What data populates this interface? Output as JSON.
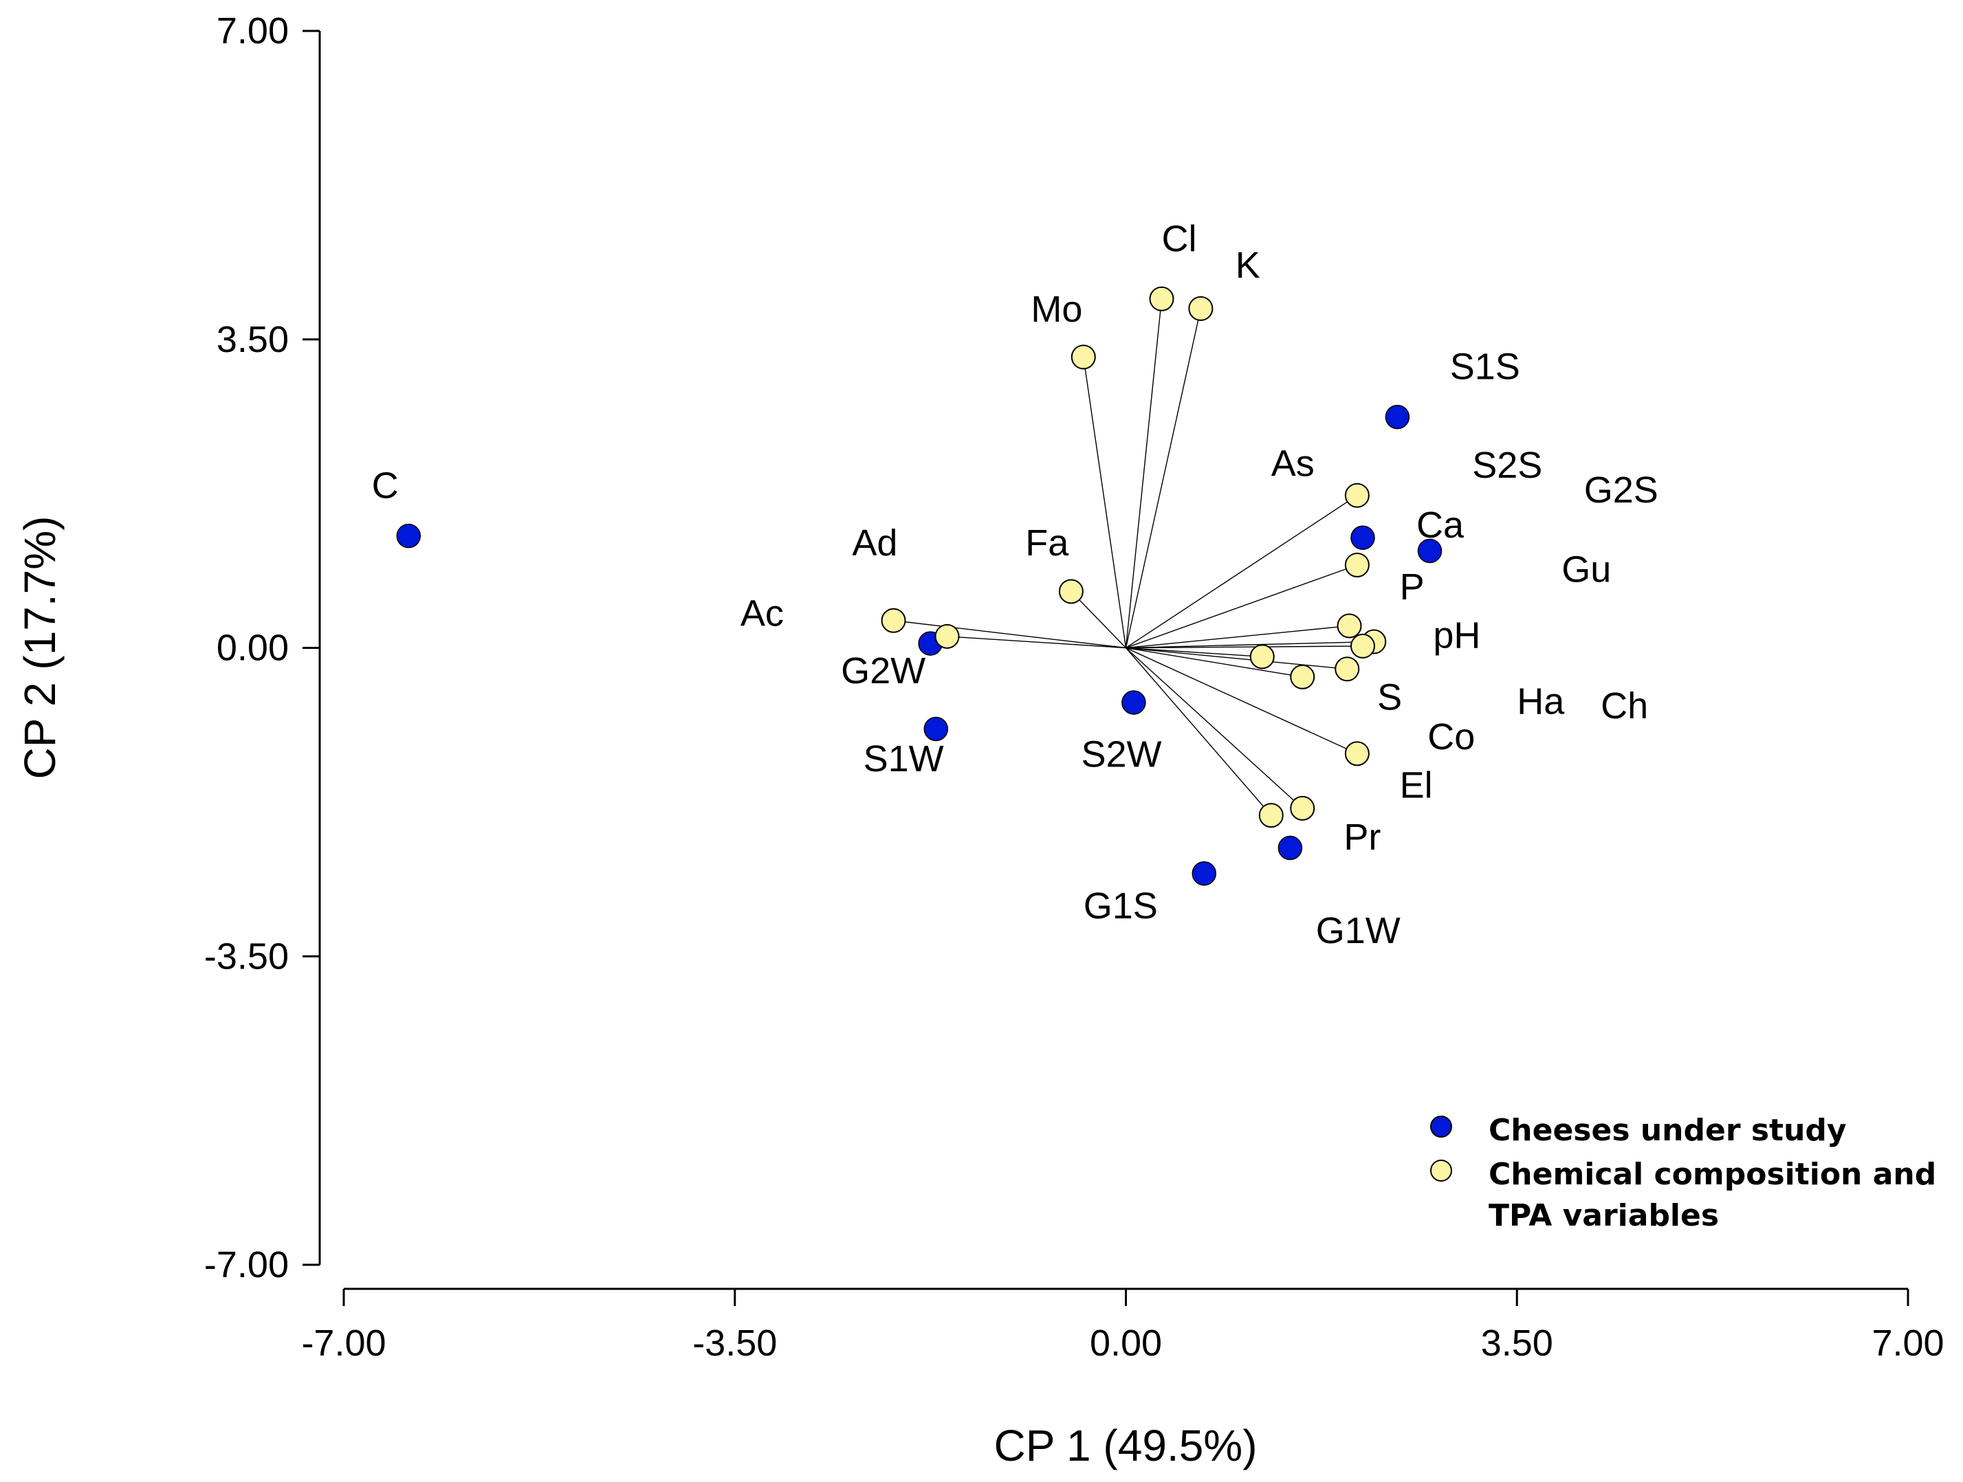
{
  "colors": {
    "cheese": "#0018d8",
    "variable": "#fdf5a6"
  },
  "chart_data": {
    "type": "scatter",
    "xlabel": "CP 1 (49.5%)",
    "ylabel": "CP 2 (17.7%)",
    "xlim": [
      -7,
      7
    ],
    "ylim": [
      -7,
      7
    ],
    "xticks": [
      "-7.00",
      "-3.50",
      "0.00",
      "3.50",
      "7.00"
    ],
    "yticks": [
      "7.00",
      "3.50",
      "0.00",
      "-3.50",
      "-7.00"
    ],
    "grid": false,
    "legend_position": "bottom-right",
    "series": [
      {
        "name": "Cheeses under study",
        "points": [
          {
            "label": "C",
            "x": -6.42,
            "y": 1.27
          },
          {
            "label": "S1S",
            "x": 2.43,
            "y": 2.62
          },
          {
            "label": "G2S",
            "x": 2.72,
            "y": 1.1
          },
          {
            "label": "S2S",
            "x": 2.12,
            "y": 1.25
          },
          {
            "label": "G2W",
            "x": -1.75,
            "y": 0.05
          },
          {
            "label": "S1W",
            "x": -1.7,
            "y": -0.92
          },
          {
            "label": "S2W",
            "x": 0.07,
            "y": -0.62
          },
          {
            "label": "G1W",
            "x": 1.47,
            "y": -2.27
          },
          {
            "label": "G1S",
            "x": 0.7,
            "y": -2.56
          }
        ]
      },
      {
        "name": "Chemical composition and TPA variables",
        "points": [
          {
            "label": "Cl",
            "x": 0.32,
            "y": 3.96
          },
          {
            "label": "K",
            "x": 0.67,
            "y": 3.85
          },
          {
            "label": "Mo",
            "x": -0.38,
            "y": 3.3
          },
          {
            "label": "As",
            "x": 2.07,
            "y": 1.73
          },
          {
            "label": "Ca",
            "x": 2.07,
            "y": 0.94
          },
          {
            "label": "Fa",
            "x": -0.49,
            "y": 0.64
          },
          {
            "label": "Ad",
            "x": -2.08,
            "y": 0.31
          },
          {
            "label": "Ac",
            "x": -1.6,
            "y": 0.13
          },
          {
            "label": "P",
            "x": 2.0,
            "y": 0.25
          },
          {
            "label": "pH",
            "x": 2.22,
            "y": 0.07
          },
          {
            "label": "Gu",
            "x": 2.12,
            "y": 0.02
          },
          {
            "label": "Ha",
            "x": 1.22,
            "y": -0.1
          },
          {
            "label": "Ch",
            "x": 1.98,
            "y": -0.24
          },
          {
            "label": "S",
            "x": 1.58,
            "y": -0.33
          },
          {
            "label": "Co",
            "x": 2.07,
            "y": -1.2
          },
          {
            "label": "El",
            "x": 1.58,
            "y": -1.82
          },
          {
            "label": "Pr",
            "x": 1.3,
            "y": -1.9
          }
        ]
      }
    ],
    "annotations": [
      {
        "text": "C",
        "x": -6.75,
        "y": 1.7
      },
      {
        "text": "S1S",
        "x": 2.9,
        "y": 3.05
      },
      {
        "text": "S2S",
        "x": 3.1,
        "y": 1.93
      },
      {
        "text": "G2S",
        "x": 4.1,
        "y": 1.65
      },
      {
        "text": "Gu",
        "x": 3.9,
        "y": 0.75
      },
      {
        "text": "Ha",
        "x": 3.5,
        "y": -0.75
      },
      {
        "text": "Ch",
        "x": 4.25,
        "y": -0.8
      },
      {
        "text": "As",
        "x": 1.3,
        "y": 1.95
      },
      {
        "text": "Ca",
        "x": 2.6,
        "y": 1.25
      },
      {
        "text": "P",
        "x": 2.45,
        "y": 0.55
      },
      {
        "text": "pH",
        "x": 2.75,
        "y": 0.0
      },
      {
        "text": "S",
        "x": 2.25,
        "y": -0.7
      },
      {
        "text": "Co",
        "x": 2.7,
        "y": -1.15
      },
      {
        "text": "El",
        "x": 2.45,
        "y": -1.7
      },
      {
        "text": "Pr",
        "x": 1.95,
        "y": -2.29
      },
      {
        "text": "G1W",
        "x": 1.7,
        "y": -3.35
      },
      {
        "text": "G1S",
        "x": -0.38,
        "y": -3.07
      },
      {
        "text": "S2W",
        "x": -0.4,
        "y": -1.35
      },
      {
        "text": "S1W",
        "x": -2.35,
        "y": -1.4
      },
      {
        "text": "G2W",
        "x": -2.55,
        "y": -0.4
      },
      {
        "text": "Ac",
        "x": -3.45,
        "y": 0.25
      },
      {
        "text": "Ad",
        "x": -2.45,
        "y": 1.05
      },
      {
        "text": "Fa",
        "x": -0.9,
        "y": 1.05
      },
      {
        "text": "Mo",
        "x": -0.85,
        "y": 3.7
      },
      {
        "text": "Cl",
        "x": 0.32,
        "y": 4.5
      },
      {
        "text": "K",
        "x": 0.98,
        "y": 4.2
      }
    ]
  },
  "legend": {
    "items": [
      {
        "label": "Cheeses under study"
      },
      {
        "label": "Chemical composition and TPA variables",
        "line1": "Chemical composition and",
        "line2": "TPA variables"
      }
    ]
  }
}
